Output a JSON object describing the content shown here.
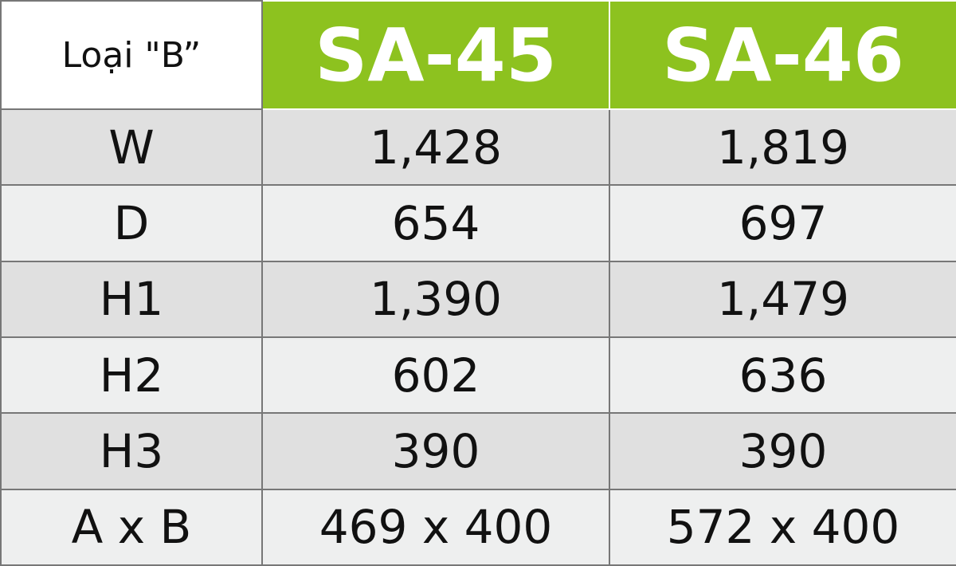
{
  "table": {
    "header": [
      "Loại \"B”",
      "SA-45",
      "SA-46"
    ],
    "rows": [
      [
        "W",
        "1,428",
        "1,819"
      ],
      [
        "D",
        "654",
        "697"
      ],
      [
        "H1",
        "1,390",
        "1,479"
      ],
      [
        "H2",
        "602",
        "636"
      ],
      [
        "H3",
        "390",
        "390"
      ],
      [
        "A x B",
        "469 x 400",
        "572 x 400"
      ]
    ]
  }
}
